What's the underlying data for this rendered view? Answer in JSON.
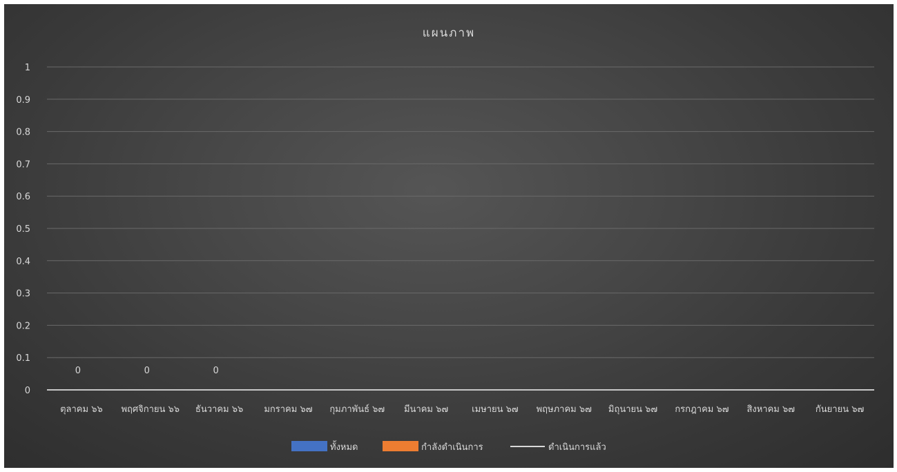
{
  "chart_data": {
    "type": "bar",
    "title": "แผนภาพ",
    "xlabel": "",
    "ylabel": "",
    "ylim": [
      0,
      1
    ],
    "yticks": [
      0,
      0.1,
      0.2,
      0.3,
      0.4,
      0.5,
      0.6,
      0.7,
      0.8,
      0.9,
      1
    ],
    "ytick_labels": [
      "0",
      "0.1",
      "0.2",
      "0.3",
      "0.4",
      "0.5",
      "0.6",
      "0.7",
      "0.8",
      "0.9",
      "1"
    ],
    "grid": true,
    "legend_position": "bottom",
    "categories": [
      "ตุลาคม ๖๖",
      "พฤศจิกายน ๖๖",
      "ธันวาคม ๖๖",
      "มกราคม ๖๗",
      "กุมภาพันธ์ ๖๗",
      "มีนาคม ๖๗",
      "เมษายน ๖๗",
      "พฤษภาคม ๖๗",
      "มิถุนายน ๖๗",
      "กรกฎาคม ๖๗",
      "สิงหาคม ๖๗",
      "กันยายน ๖๗"
    ],
    "series": [
      {
        "name": "ทั้งหมด",
        "kind": "bar",
        "color": "#4472c4",
        "values": [
          0,
          0,
          0,
          null,
          null,
          null,
          null,
          null,
          null,
          null,
          null,
          null
        ]
      },
      {
        "name": "กำลังดำเนินการ",
        "kind": "bar",
        "color": "#ed7d31",
        "values": [
          0,
          0,
          0,
          null,
          null,
          null,
          null,
          null,
          null,
          null,
          null,
          null
        ]
      },
      {
        "name": "ดำเนินการแล้ว",
        "kind": "line",
        "color": "#d9d9d9",
        "values": [
          0,
          0,
          0,
          null,
          null,
          null,
          null,
          null,
          null,
          null,
          null,
          null
        ]
      }
    ],
    "data_labels": [
      "0",
      "0",
      "0",
      "",
      "",
      "",
      "",
      "",
      "",
      "",
      "",
      ""
    ]
  }
}
